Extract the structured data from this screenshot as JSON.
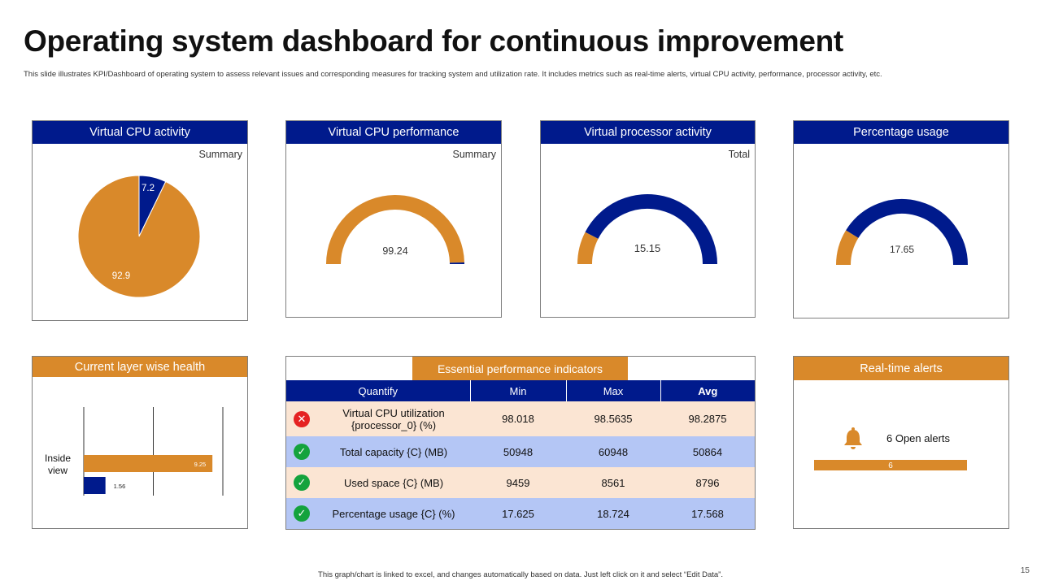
{
  "title": "Operating system dashboard for continuous improvement",
  "subtitle": "This slide illustrates KPI/Dashboard  of operating system to assess relevant issues and corresponding measures for tracking system and utilization rate. It includes metrics such as real-time alerts, virtual CPU  activity, performance, processor activity, etc.",
  "colors": {
    "blue": "#001a8c",
    "orange": "#d9892a",
    "row_odd": "#fbe5d3",
    "row_even": "#b4c6f5",
    "ok": "#14a33d",
    "error": "#e52222"
  },
  "panels": {
    "cpu_activity": {
      "header": "Virtual CPU activity",
      "corner": "Summary"
    },
    "cpu_performance": {
      "header": "Virtual CPU performance",
      "corner": "Summary"
    },
    "processor_activity": {
      "header": "Virtual processor activity",
      "corner": "Total"
    },
    "percentage_usage": {
      "header": "Percentage usage",
      "corner": ""
    },
    "layer_health": {
      "header": "Current layer wise health"
    },
    "realtime_alerts": {
      "header": "Real-time alerts"
    }
  },
  "kpi_table": {
    "header": "Essential performance indicators",
    "columns": [
      "Quantify",
      "Min",
      "Max",
      "Avg"
    ],
    "rows": [
      {
        "status": "error",
        "status_icon": "x-circle-icon",
        "name": "Virtual CPU utilization {processor_0} (%)",
        "min": "98.018",
        "max": "98.5635",
        "avg": "98.2875"
      },
      {
        "status": "ok",
        "status_icon": "check-circle-icon",
        "name": "Total capacity {C} (MB)",
        "min": "50948",
        "max": "60948",
        "avg": "50864"
      },
      {
        "status": "ok",
        "status_icon": "check-circle-icon",
        "name": "Used space {C} (MB)",
        "min": "9459",
        "max": "8561",
        "avg": "8796"
      },
      {
        "status": "ok",
        "status_icon": "check-circle-icon",
        "name": "Percentage usage {C} (%)",
        "min": "17.625",
        "max": "18.724",
        "avg": "17.568"
      }
    ]
  },
  "alerts": {
    "icon": "bell-icon",
    "label": "6 Open alerts",
    "bar_value": "6"
  },
  "footer_note": "This graph/chart is linked to excel, and changes automatically based on data. Just left click on it and select “Edit Data”.",
  "page_number": "15",
  "chart_data": [
    {
      "type": "pie",
      "name": "Virtual CPU activity",
      "values": [
        7.2,
        92.9
      ],
      "labels": [
        "7.2",
        "92.9"
      ],
      "colors": [
        "#001a8c",
        "#d9892a"
      ]
    },
    {
      "type": "gauge",
      "name": "Virtual CPU performance",
      "value": 99.24,
      "label": "99.24",
      "max": 100
    },
    {
      "type": "gauge",
      "name": "Virtual processor activity",
      "value": 15.15,
      "label": "15.15",
      "max": 100
    },
    {
      "type": "gauge",
      "name": "Percentage usage",
      "value": 17.65,
      "label": "17.65",
      "max": 100
    },
    {
      "type": "bar",
      "orientation": "horizontal",
      "name": "Current layer wise health",
      "categories": [
        "Inside view"
      ],
      "series": [
        {
          "values": [
            9.25
          ],
          "color": "#d9892a"
        },
        {
          "values": [
            1.56
          ],
          "color": "#001a8c"
        }
      ],
      "labels": [
        "9.25",
        "1.56"
      ],
      "xlim": [
        0,
        10
      ]
    },
    {
      "type": "bar",
      "orientation": "horizontal",
      "name": "Real-time alerts",
      "values": [
        6
      ],
      "labels": [
        "6"
      ]
    }
  ]
}
